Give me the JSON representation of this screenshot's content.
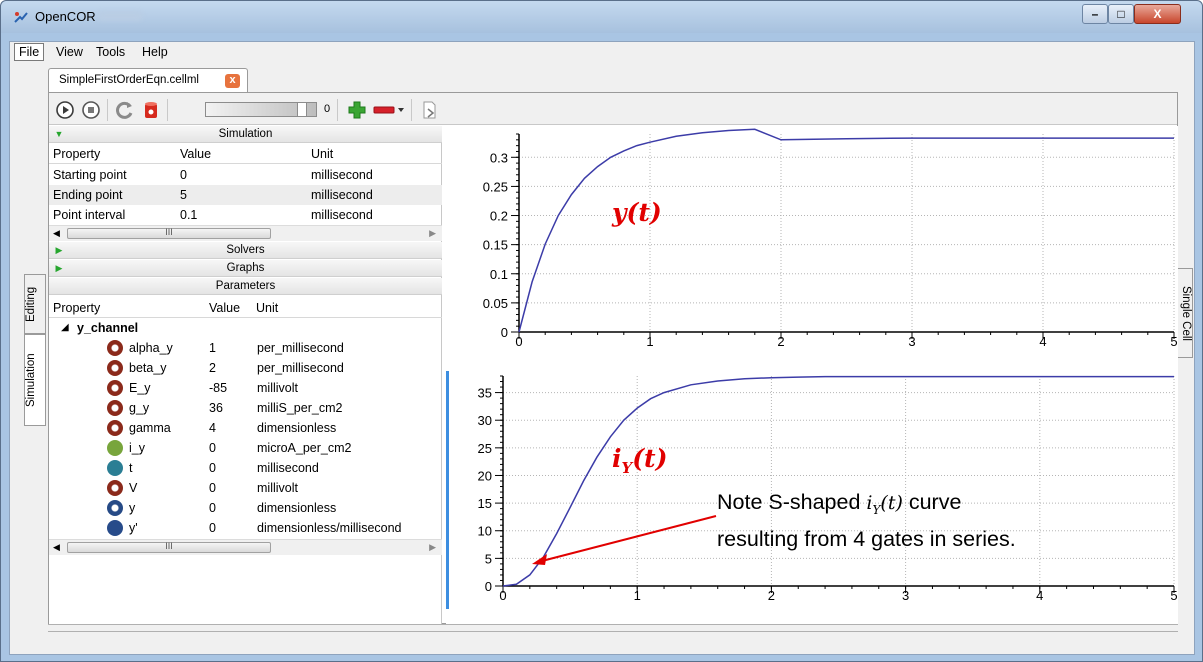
{
  "window": {
    "title": "OpenCOR",
    "controls": {
      "minimize": "–",
      "maximize": "□",
      "close": "X"
    }
  },
  "menu": [
    "File",
    "View",
    "Tools",
    "Help"
  ],
  "document_tab": {
    "label": "SimpleFirstOrderEqn.cellml",
    "close": "x"
  },
  "toolbar": {
    "slider_value": "0",
    "slider_fraction": 0.9
  },
  "side_tabs": {
    "editing": "Editing",
    "simulation": "Simulation",
    "single_cell": "Single Cell"
  },
  "simulation": {
    "title": "Simulation",
    "headers": [
      "Property",
      "Value",
      "Unit"
    ],
    "rows": [
      [
        "Starting point",
        "0",
        "millisecond"
      ],
      [
        "Ending point",
        "5",
        "millisecond"
      ],
      [
        "Point interval",
        "0.1",
        "millisecond"
      ]
    ],
    "scroll_grip": "III"
  },
  "solvers": {
    "title": "Solvers"
  },
  "graphs_section": {
    "title": "Graphs"
  },
  "parameters": {
    "title": "Parameters",
    "headers": [
      "Property",
      "Value",
      "Unit"
    ],
    "group": "y_channel",
    "rows": [
      {
        "name": "alpha_y",
        "value": "1",
        "unit": "per_millisecond",
        "icon": "ring-red"
      },
      {
        "name": "beta_y",
        "value": "2",
        "unit": "per_millisecond",
        "icon": "ring-red"
      },
      {
        "name": "E_y",
        "value": "-85",
        "unit": "millivolt",
        "icon": "ring-red"
      },
      {
        "name": "g_y",
        "value": "36",
        "unit": "milliS_per_cm2",
        "icon": "ring-red"
      },
      {
        "name": "gamma",
        "value": "4",
        "unit": "dimensionless",
        "icon": "ring-red"
      },
      {
        "name": "i_y",
        "value": "0",
        "unit": "microA_per_cm2",
        "icon": "dot-green"
      },
      {
        "name": "t",
        "value": "0",
        "unit": "millisecond",
        "icon": "dot-teal"
      },
      {
        "name": "V",
        "value": "0",
        "unit": "millivolt",
        "icon": "ring-red"
      },
      {
        "name": "y",
        "value": "0",
        "unit": "dimensionless",
        "icon": "ring-blue"
      },
      {
        "name": "y'",
        "value": "0",
        "unit": "dimensionless/millisecond",
        "icon": "dot-blue"
      }
    ],
    "scroll_grip": "III"
  },
  "annotations": {
    "y_label": "y(t)",
    "i_label": "i",
    "i_sub": "Y",
    "i_tail": "(t)",
    "note_line1_pre": "Note S-shaped ",
    "note_line1_post": " curve",
    "note_line2": "resulting from 4 gates in series.",
    "note_color": "#e10000"
  },
  "chart_data": [
    {
      "type": "line",
      "x_ticks": [
        "0",
        "1",
        "2",
        "3",
        "4",
        "5"
      ],
      "y_ticks": [
        "0",
        "0.05",
        "0.1",
        "0.15",
        "0.2",
        "0.25",
        "0.3"
      ],
      "xlim": [
        0,
        5
      ],
      "ylim": [
        0,
        0.34
      ],
      "grid": true,
      "color": "#3c3ca8",
      "x": [
        0,
        0.1,
        0.2,
        0.3,
        0.4,
        0.5,
        0.6,
        0.7,
        0.8,
        0.9,
        1.0,
        1.2,
        1.4,
        1.6,
        1.8,
        2.0,
        2.5,
        3.0,
        3.5,
        4.0,
        4.5,
        5.0
      ],
      "y": [
        0,
        0.086,
        0.151,
        0.2,
        0.236,
        0.264,
        0.284,
        0.3,
        0.311,
        0.32,
        0.326,
        0.336,
        0.342,
        0.346,
        0.348,
        0.33,
        0.332,
        0.333,
        0.333,
        0.333,
        0.333,
        0.333
      ]
    },
    {
      "type": "line",
      "x_ticks": [
        "0",
        "1",
        "2",
        "3",
        "4",
        "5"
      ],
      "y_ticks": [
        "0",
        "5",
        "10",
        "15",
        "20",
        "25",
        "30",
        "35"
      ],
      "xlim": [
        0,
        5
      ],
      "ylim": [
        0,
        38
      ],
      "grid": true,
      "color": "#3c3ca8",
      "x": [
        0,
        0.1,
        0.2,
        0.3,
        0.4,
        0.5,
        0.6,
        0.7,
        0.8,
        0.9,
        1.0,
        1.1,
        1.2,
        1.4,
        1.6,
        1.8,
        2.0,
        2.2,
        2.4,
        3.0,
        4.0,
        5.0
      ],
      "y": [
        0,
        0.3,
        2.0,
        5.2,
        9.5,
        14.2,
        19.0,
        23.3,
        27.0,
        30.0,
        32.2,
        33.9,
        35.0,
        36.4,
        37.1,
        37.5,
        37.7,
        37.8,
        37.9,
        37.9,
        37.9,
        37.9
      ]
    }
  ]
}
